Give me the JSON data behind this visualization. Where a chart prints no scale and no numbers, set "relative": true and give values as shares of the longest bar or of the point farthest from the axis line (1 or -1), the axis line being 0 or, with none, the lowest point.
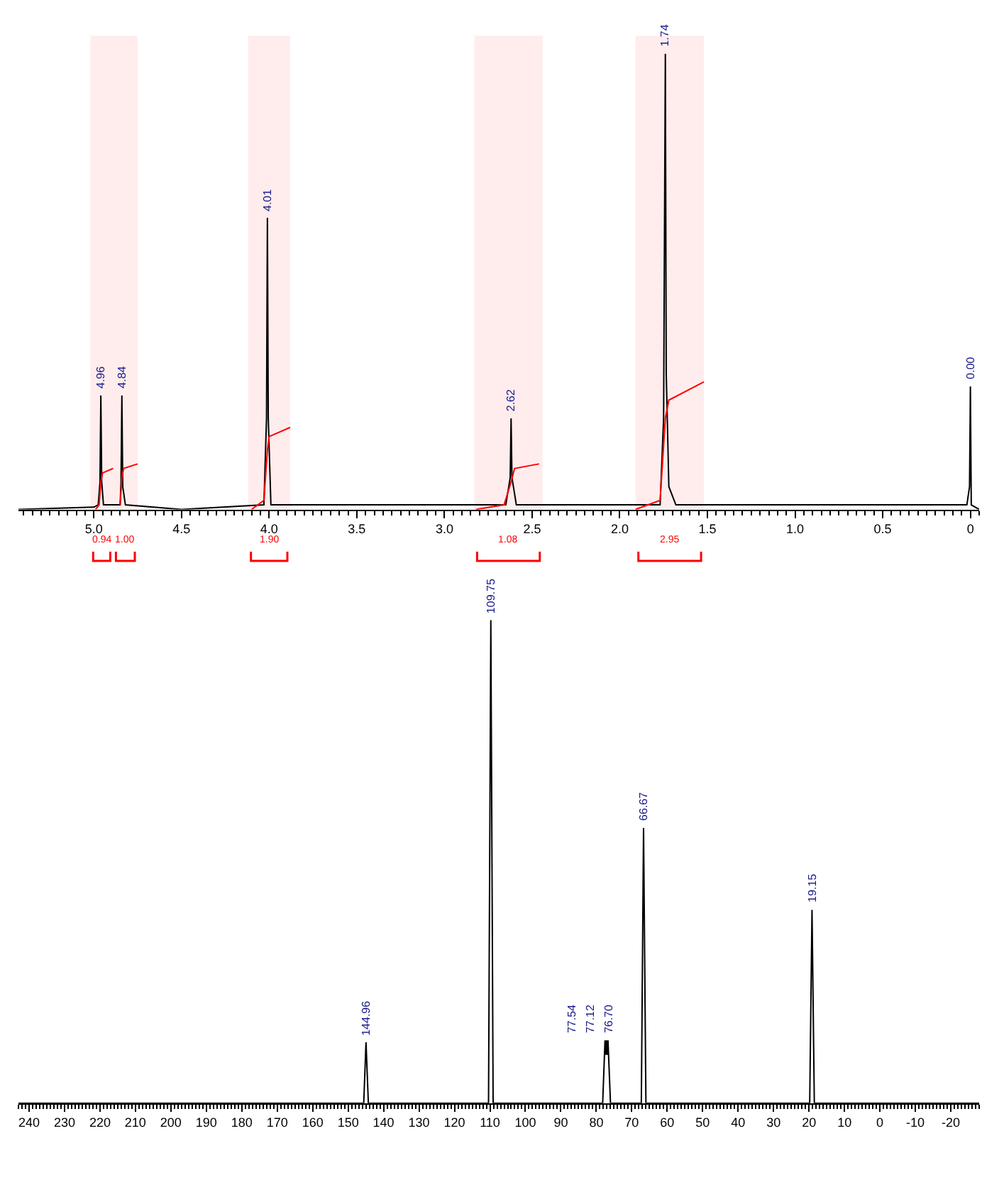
{
  "chart_data": [
    {
      "type": "line",
      "relative": true,
      "tick_labels": "x",
      "grid": false,
      "marker": "none",
      "xlim": [
        5.43,
        -0.05
      ],
      "xticks": [
        {
          "value": 5.0,
          "label": "5.0"
        },
        4.5,
        {
          "value": 4.0,
          "label": "4.0"
        },
        3.5,
        {
          "value": 3.0,
          "label": "3.0"
        },
        2.5,
        {
          "value": 2.0,
          "label": "2.0"
        },
        1.5,
        {
          "value": 1.0,
          "label": "1.0"
        },
        0.5,
        0
      ],
      "series": [
        {
          "color": "#000000",
          "x": [
            5.43,
            5.0,
            4.975,
            4.965,
            4.96,
            4.955,
            4.945,
            4.85,
            4.845,
            4.84,
            4.835,
            4.82,
            4.5,
            4.03,
            4.015,
            4.01,
            4.005,
            3.99,
            2.65,
            2.625,
            2.62,
            2.615,
            2.59,
            1.77,
            1.75,
            1.74,
            1.735,
            1.72,
            1.68,
            0.02,
            0.005,
            0,
            -0.005,
            -0.05
          ],
          "values": [
            0,
            0.005,
            0.01,
            0.06,
            0.25,
            0.06,
            0.01,
            0.01,
            0.06,
            0.25,
            0.05,
            0.01,
            0,
            0.01,
            0.2,
            0.64,
            0.2,
            0.01,
            0.01,
            0.07,
            0.2,
            0.07,
            0.01,
            0.01,
            0.2,
            1,
            0.3,
            0.05,
            0.01,
            0.01,
            0.05,
            0.27,
            0.01,
            0
          ]
        },
        {
          "color": "#ff0000",
          "x": [
            4.99,
            4.97,
            4.96,
            4.95,
            4.89
          ],
          "values": [
            0,
            0.01,
            0.06,
            0.08,
            0.09
          ]
        },
        {
          "color": "#ff0000",
          "x": [
            4.85,
            4.84,
            4.83,
            4.75
          ],
          "values": [
            0.01,
            0.07,
            0.09,
            0.1
          ]
        },
        {
          "color": "#ff0000",
          "x": [
            4.1,
            4.03,
            4.01,
            4.0,
            3.88
          ],
          "values": [
            0,
            0.02,
            0.13,
            0.16,
            0.18
          ]
        },
        {
          "color": "#ff0000",
          "x": [
            2.82,
            2.66,
            2.62,
            2.6,
            2.46
          ],
          "values": [
            0,
            0.01,
            0.06,
            0.09,
            0.1
          ]
        },
        {
          "color": "#ff0000",
          "x": [
            1.91,
            1.77,
            1.74,
            1.72,
            1.52
          ],
          "values": [
            0,
            0.02,
            0.2,
            0.24,
            0.28
          ]
        }
      ],
      "annotations": [
        {
          "text": "4.96",
          "x": 4.96,
          "y": 0.25
        },
        {
          "text": "4.84",
          "x": 4.84,
          "y": 0.25
        },
        {
          "text": "4.01",
          "x": 4.01,
          "y": 0.64
        },
        {
          "text": "2.62",
          "x": 2.62,
          "y": 0.2
        },
        {
          "text": "1.74",
          "x": 1.74,
          "y": 1
        },
        {
          "text": "0.00",
          "x": 0,
          "y": 0.27
        }
      ],
      "bands": [
        {
          "axis": "x",
          "from": 5.02,
          "to": 4.89,
          "label": "0.94",
          "color": "#ff0000"
        },
        {
          "axis": "x",
          "from": 4.89,
          "to": 4.75,
          "label": "1.00",
          "color": "#ff0000"
        },
        {
          "axis": "x",
          "from": 4.12,
          "to": 3.88,
          "label": "1.90",
          "color": "#ff0000"
        },
        {
          "axis": "x",
          "from": 2.83,
          "to": 2.44,
          "label": "1.08",
          "color": "#ff0000"
        },
        {
          "axis": "x",
          "from": 1.91,
          "to": 1.52,
          "label": "2.95",
          "color": "#ff0000"
        }
      ]
    },
    {
      "type": "line",
      "relative": true,
      "tick_labels": "x",
      "grid": false,
      "marker": "none",
      "xlim": [
        243,
        -28
      ],
      "xticks": [
        240,
        230,
        220,
        210,
        200,
        190,
        180,
        170,
        160,
        150,
        140,
        130,
        120,
        110,
        100,
        90,
        80,
        70,
        60,
        50,
        40,
        30,
        20,
        10,
        0,
        -10,
        -20
      ],
      "series": [
        {
          "color": "#000000",
          "x": [
            243,
            145.6,
            144.96,
            144.3,
            110.4,
            109.75,
            109.1,
            78.2,
            77.54,
            77.33,
            77.12,
            76.91,
            76.7,
            76.0,
            67.3,
            66.67,
            66.0,
            19.8,
            19.15,
            18.5,
            -28
          ],
          "values": [
            0,
            0,
            0.126,
            0,
            0,
            1,
            0,
            0,
            0.13,
            0.1,
            0.13,
            0.1,
            0.13,
            0,
            0,
            0.57,
            0,
            0,
            0.4,
            0,
            0
          ]
        }
      ],
      "annotations": [
        {
          "text": "144.96",
          "x": 144.96,
          "y": 0.126
        },
        {
          "text": "109.75",
          "x": 109.75,
          "y": 1
        },
        {
          "text": "77.54",
          "x": 77.54,
          "y": 0.13
        },
        {
          "text": "77.12",
          "x": 77.12,
          "y": 0.13
        },
        {
          "text": "76.70",
          "x": 76.7,
          "y": 0.13
        },
        {
          "text": "66.67",
          "x": 66.67,
          "y": 0.57
        },
        {
          "text": "19.15",
          "x": 19.15,
          "y": 0.4
        }
      ]
    }
  ]
}
